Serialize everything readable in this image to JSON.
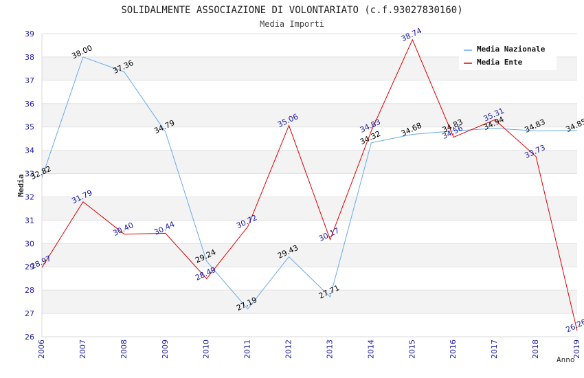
{
  "chart_data": {
    "type": "line",
    "title": "SOLIDALMENTE ASSOCIAZIONE DI VOLONTARIATO (c.f.93027830160)",
    "subtitle": "Media Importi",
    "xlabel": "Anno",
    "ylabel": "Media",
    "ylim": [
      26,
      39
    ],
    "yticks": [
      "26",
      "27",
      "28",
      "29",
      "30",
      "31",
      "32",
      "33",
      "34",
      "35",
      "36",
      "37",
      "38",
      "39"
    ],
    "categories": [
      "2006",
      "2007",
      "2008",
      "2009",
      "2010",
      "2011",
      "2012",
      "2013",
      "2014",
      "2015",
      "2016",
      "2017",
      "2018",
      "2019"
    ],
    "grid": true,
    "legend_position": "top-right",
    "series": [
      {
        "name": "Media Nazionale",
        "color": "#66aaee",
        "label_color": "#000000",
        "values": [
          32.82,
          38.0,
          37.36,
          34.79,
          29.24,
          27.19,
          29.43,
          27.71,
          34.32,
          34.68,
          34.83,
          34.94,
          34.83,
          34.85
        ],
        "labels": [
          "32.82",
          "38.00",
          "37.36",
          "34.79",
          "29.24",
          "27.19",
          "29.43",
          "27.71",
          "34.32",
          "34.68",
          "34.83",
          "34.94",
          "34.83",
          "34.85"
        ]
      },
      {
        "name": "Media Ente",
        "color": "#dd0000",
        "label_color": "#1a1aa0",
        "values": [
          28.97,
          31.79,
          30.4,
          30.44,
          28.49,
          30.72,
          35.06,
          30.17,
          34.83,
          38.74,
          34.56,
          35.31,
          33.73,
          26.26
        ],
        "labels": [
          "28.97",
          "31.79",
          "30.40",
          "30.44",
          "28.49",
          "30.72",
          "35.06",
          "30.17",
          "34.83",
          "38.74",
          "34.56",
          "35.31",
          "33.73",
          "26.26"
        ]
      }
    ]
  }
}
